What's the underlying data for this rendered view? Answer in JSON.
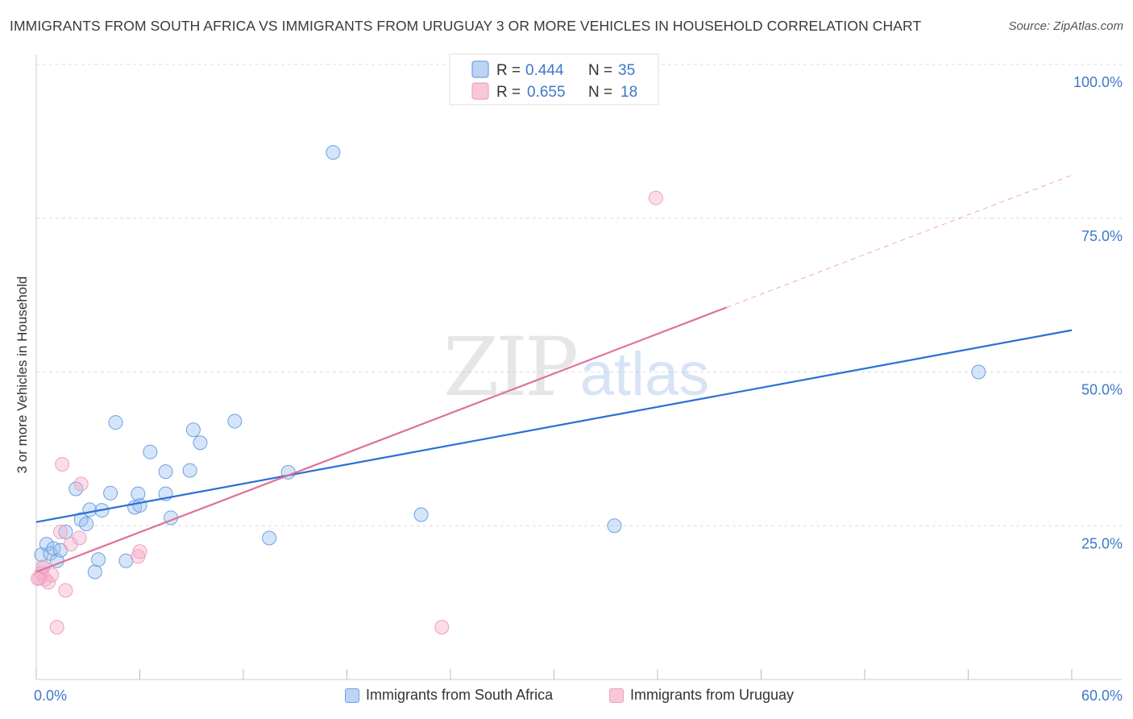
{
  "header": {
    "title": "IMMIGRANTS FROM SOUTH AFRICA VS IMMIGRANTS FROM URUGUAY 3 OR MORE VEHICLES IN HOUSEHOLD CORRELATION CHART",
    "source": "Source: ZipAtlas.com"
  },
  "watermark": {
    "zip": "ZIP",
    "atlas": "atlas"
  },
  "legend": {
    "rows": [
      {
        "r_label": "R =",
        "r_value": "0.444",
        "n_label": "N =",
        "n_value": "35"
      },
      {
        "r_label": "R =",
        "r_value": "0.655",
        "n_label": "N =",
        "n_value": "18"
      }
    ]
  },
  "bottom_legend": {
    "south_africa": "Immigrants from South Africa",
    "uruguay": "Immigrants from Uruguay"
  },
  "chart_data": {
    "type": "scatter",
    "title": "IMMIGRANTS FROM SOUTH AFRICA VS IMMIGRANTS FROM URUGUAY 3 OR MORE VEHICLES IN HOUSEHOLD CORRELATION CHART",
    "xlabel": "",
    "ylabel": "3 or more Vehicles in Household",
    "xlim": [
      0,
      60
    ],
    "ylim": [
      0,
      100
    ],
    "x_tick_labels": [
      {
        "value": 0,
        "label": "0.0%"
      },
      {
        "value": 60,
        "label": "60.0%"
      }
    ],
    "y_tick_labels": [
      {
        "value": 25,
        "label": "25.0%"
      },
      {
        "value": 50,
        "label": "50.0%"
      },
      {
        "value": 75,
        "label": "75.0%"
      },
      {
        "value": 100,
        "label": "100.0%"
      }
    ],
    "x_minor_ticks": [
      0,
      6,
      12,
      18,
      24,
      30,
      36,
      42,
      48,
      54,
      60
    ],
    "series": [
      {
        "name": "Immigrants from South Africa",
        "color": "#6fa1e0",
        "line_color": "#2b6fd4",
        "R": 0.444,
        "N": 35,
        "trend": {
          "x0": 0,
          "y0": 25.6,
          "x1": 60,
          "y1": 56.8
        },
        "points": [
          [
            0.3,
            20.3
          ],
          [
            0.4,
            18.3
          ],
          [
            0.6,
            22.0
          ],
          [
            0.8,
            20.5
          ],
          [
            1.0,
            21.3
          ],
          [
            1.2,
            19.3
          ],
          [
            1.4,
            21.0
          ],
          [
            1.7,
            24.0
          ],
          [
            2.3,
            31.0
          ],
          [
            2.6,
            26.0
          ],
          [
            2.9,
            25.3
          ],
          [
            3.1,
            27.6
          ],
          [
            3.4,
            17.5
          ],
          [
            3.6,
            19.5
          ],
          [
            3.8,
            27.5
          ],
          [
            4.3,
            30.3
          ],
          [
            4.6,
            41.8
          ],
          [
            5.2,
            19.3
          ],
          [
            5.7,
            28.0
          ],
          [
            5.9,
            30.2
          ],
          [
            6.0,
            28.3
          ],
          [
            6.6,
            37.0
          ],
          [
            7.5,
            30.2
          ],
          [
            7.5,
            33.8
          ],
          [
            7.8,
            26.3
          ],
          [
            8.9,
            34.0
          ],
          [
            9.1,
            40.6
          ],
          [
            9.5,
            38.5
          ],
          [
            11.5,
            42.0
          ],
          [
            13.5,
            23.0
          ],
          [
            14.6,
            33.7
          ],
          [
            17.2,
            85.7
          ],
          [
            22.3,
            26.8
          ],
          [
            33.5,
            25.0
          ],
          [
            54.6,
            50.0
          ]
        ]
      },
      {
        "name": "Immigrants from Uruguay",
        "color": "#f0a0bd",
        "line_color": "#e07098",
        "R": 0.655,
        "N": 18,
        "trend": {
          "x0": 0,
          "y0": 17.5,
          "x1": 40,
          "y1": 60.5,
          "dashed_to_x": 60,
          "dashed_to_y": 82.0
        },
        "points": [
          [
            0.2,
            16.5
          ],
          [
            0.3,
            17.3
          ],
          [
            0.4,
            18.3
          ],
          [
            0.5,
            16.3
          ],
          [
            0.7,
            15.8
          ],
          [
            0.9,
            17.0
          ],
          [
            1.2,
            8.5
          ],
          [
            1.5,
            35.0
          ],
          [
            1.4,
            24.0
          ],
          [
            1.7,
            14.5
          ],
          [
            2.0,
            22.0
          ],
          [
            2.5,
            23.0
          ],
          [
            2.6,
            31.8
          ],
          [
            5.9,
            20.0
          ],
          [
            6.0,
            20.8
          ],
          [
            23.5,
            8.5
          ],
          [
            35.9,
            78.3
          ],
          [
            0.1,
            16.4
          ]
        ]
      }
    ]
  }
}
